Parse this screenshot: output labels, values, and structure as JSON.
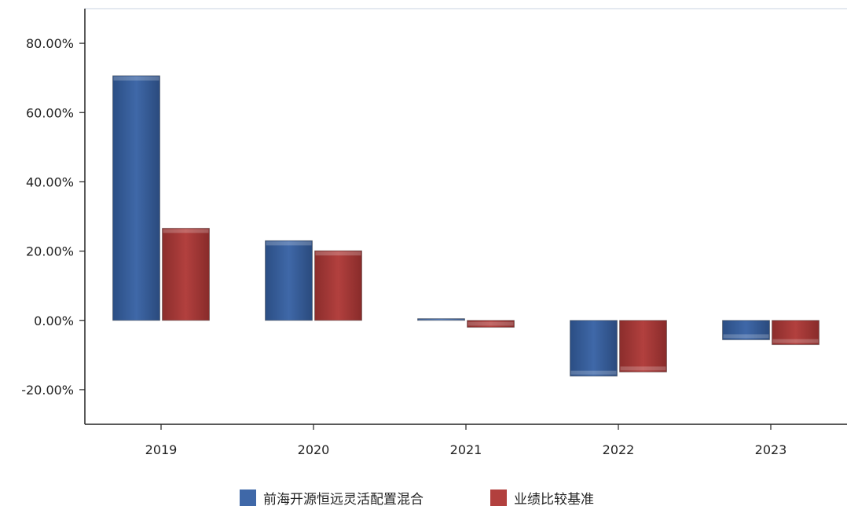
{
  "chart_data": {
    "type": "bar",
    "title": "",
    "xlabel": "",
    "ylabel": "",
    "categories": [
      "2019",
      "2020",
      "2021",
      "2022",
      "2023"
    ],
    "series": [
      {
        "name": "前海开源恒远灵活配置混合",
        "values": [
          70.6,
          23.0,
          0.5,
          -16.1,
          -5.6
        ],
        "color": "#3f68a8"
      },
      {
        "name": "业绩比较基准",
        "values": [
          26.6,
          20.1,
          -2.0,
          -14.9,
          -7.0
        ],
        "color": "#b2403e"
      }
    ],
    "ylim": [
      -30,
      90
    ],
    "yticks": [
      -20,
      0,
      20,
      40,
      60,
      80
    ],
    "ytick_labels": [
      "-20.00%",
      "0.00%",
      "20.00%",
      "40.00%",
      "60.00%",
      "80.00%"
    ],
    "legend_position": "bottom-center",
    "grid": false
  }
}
